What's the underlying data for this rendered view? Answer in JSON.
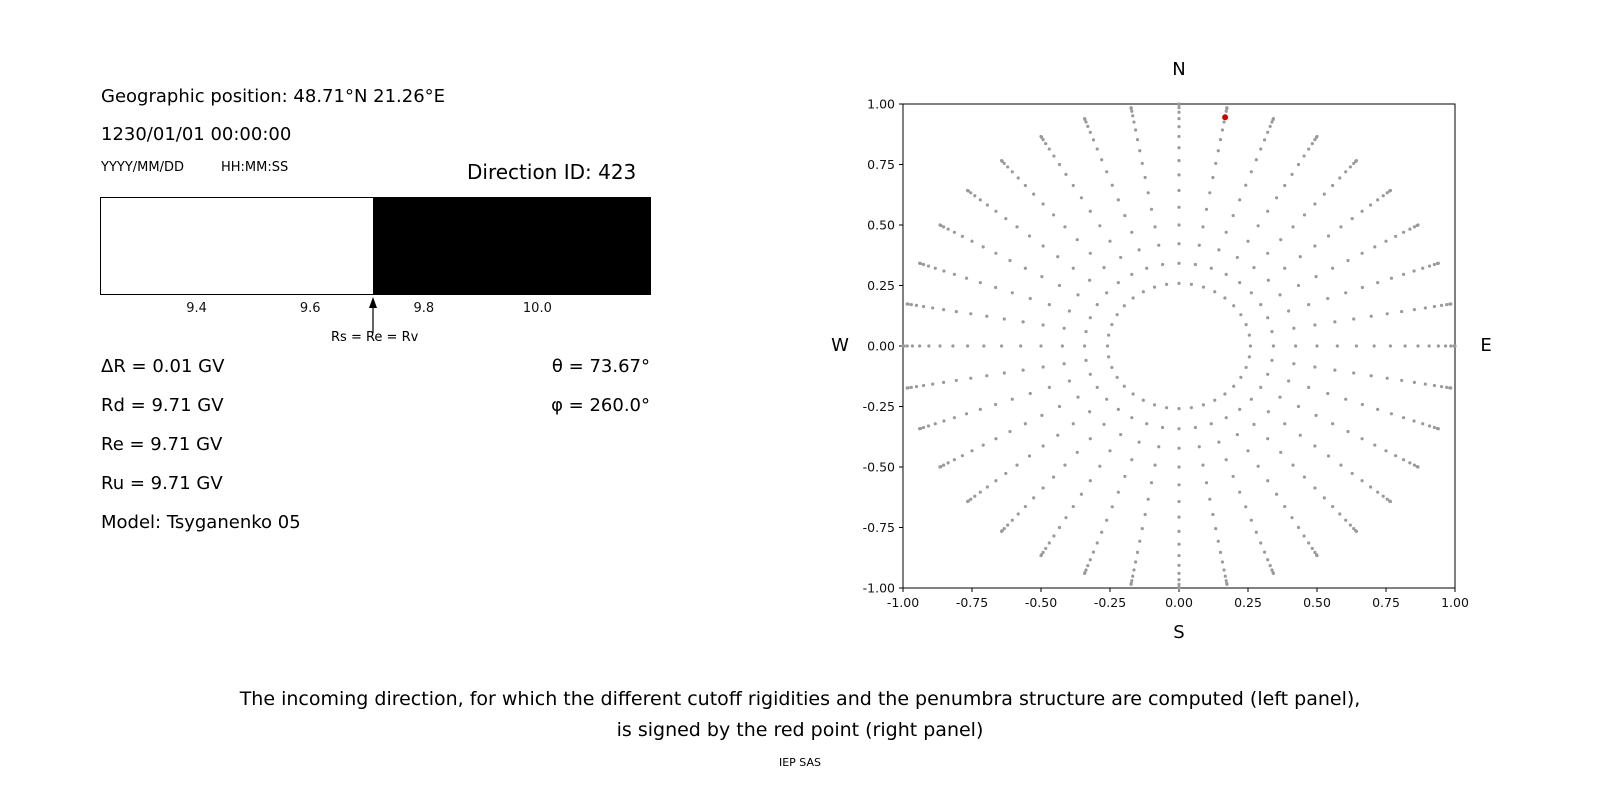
{
  "header": {
    "geo_position": "Geographic position: 48.71°N 21.26°E",
    "datetime": "1230/01/01 00:00:00",
    "date_format_hint": "YYYY/MM/DD",
    "time_format_hint": "HH:MM:SS",
    "direction_id": "Direction ID: 423"
  },
  "results": {
    "delta_r": "ΔR = 0.01 GV",
    "rd": "Rd = 9.71 GV",
    "re": "Re = 9.71 GV",
    "ru": "Ru = 9.71 GV",
    "model": "Model: Tsyganenko 05",
    "theta": "θ = 73.67°",
    "phi": "φ = 260.0°"
  },
  "caption": {
    "line1": "The incoming direction, for which the different cutoff rigidities and the penumbra structure are computed (left panel),",
    "line2": "is signed by the red point (right panel)",
    "credit": "IEP SAS"
  },
  "chart_data": [
    {
      "type": "bar",
      "name": "penumbra-spectrum",
      "xlim": [
        9.23,
        10.2
      ],
      "x_ticks": [
        9.4,
        9.6,
        9.8,
        10.0
      ],
      "tick_decimals": 1,
      "cutoff_gv": 9.71,
      "segments": [
        {
          "from": 9.23,
          "to": 9.71,
          "color": "#ffffff"
        },
        {
          "from": 9.71,
          "to": 10.2,
          "color": "#000000"
        }
      ],
      "annotation": {
        "x": 9.71,
        "label": "Rs = Re = Rv"
      }
    },
    {
      "type": "scatter",
      "name": "incoming-direction-grid",
      "xlim": [
        -1,
        1
      ],
      "ylim": [
        -1,
        1
      ],
      "x_ticks": [
        -1,
        -0.75,
        -0.5,
        -0.25,
        0,
        0.25,
        0.5,
        0.75,
        1
      ],
      "y_ticks": [
        1,
        0.75,
        0.5,
        0.25,
        0,
        -0.25,
        -0.5,
        -0.75,
        -1
      ],
      "tick_decimals": 2,
      "compass": {
        "top": "N",
        "bottom": "S",
        "left": "W",
        "right": "E"
      },
      "grid": {
        "azimuth_deg": [
          0,
          10,
          20,
          30,
          40,
          50,
          60,
          70,
          80,
          90,
          100,
          110,
          120,
          130,
          140,
          150,
          160,
          170,
          180,
          190,
          200,
          210,
          220,
          230,
          240,
          250,
          260,
          270,
          280,
          290,
          300,
          310,
          320,
          330,
          340,
          350
        ],
        "zenith_deg": [
          15,
          20,
          25,
          30,
          35,
          40,
          45,
          50,
          55,
          60,
          65,
          70,
          75,
          80,
          85,
          90
        ],
        "radius_rule": "sin(zenith)",
        "dot_color": "#9a9a9a"
      },
      "red_point": {
        "x": 0.167,
        "y": 0.945,
        "color": "#d40000",
        "theta_deg": 73.67,
        "phi_deg": 260.0
      }
    }
  ]
}
